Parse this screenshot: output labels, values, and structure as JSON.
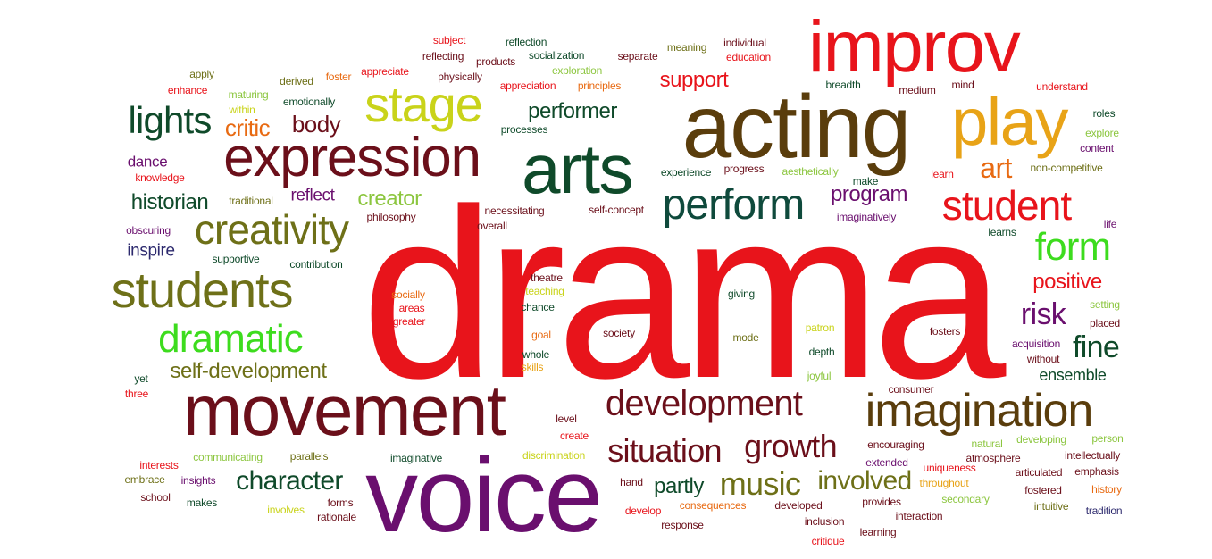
{
  "palette": {
    "red": "#e8141b",
    "dark_red": "#6b0f1a",
    "dark_green": "#0f4a2a",
    "olive": "#6e7018",
    "brown": "#5a3d0c",
    "lime": "#8cc63f",
    "yellow_green": "#c9d31a",
    "green": "#3ddc1e",
    "orange": "#e86a12",
    "amber": "#e8a317",
    "purple": "#6a0f6e",
    "navy": "#2d2a6e",
    "teal": "#0f4a3c"
  },
  "words": [
    {
      "text": "drama",
      "color": "red"
    },
    {
      "text": "voice",
      "color": "purple"
    },
    {
      "text": "movement",
      "color": "dark_red"
    },
    {
      "text": "acting",
      "color": "brown"
    },
    {
      "text": "improv",
      "color": "red"
    },
    {
      "text": "arts",
      "color": "dark_green"
    },
    {
      "text": "expression",
      "color": "dark_red"
    },
    {
      "text": "play",
      "color": "amber"
    },
    {
      "text": "imagination",
      "color": "brown"
    },
    {
      "text": "students",
      "color": "olive"
    },
    {
      "text": "stage",
      "color": "yellow_green"
    },
    {
      "text": "creativity",
      "color": "olive"
    },
    {
      "text": "student",
      "color": "red"
    },
    {
      "text": "dramatic",
      "color": "green"
    },
    {
      "text": "perform",
      "color": "teal"
    },
    {
      "text": "development",
      "color": "dark_red"
    },
    {
      "text": "lights",
      "color": "dark_green"
    },
    {
      "text": "form",
      "color": "green"
    },
    {
      "text": "growth",
      "color": "dark_red"
    },
    {
      "text": "situation",
      "color": "dark_red"
    },
    {
      "text": "music",
      "color": "olive"
    },
    {
      "text": "character",
      "color": "dark_green"
    },
    {
      "text": "self-development",
      "color": "olive"
    },
    {
      "text": "art",
      "color": "orange"
    },
    {
      "text": "involved",
      "color": "olive"
    },
    {
      "text": "fine",
      "color": "dark_green"
    },
    {
      "text": "risk",
      "color": "purple"
    },
    {
      "text": "historian",
      "color": "dark_green"
    },
    {
      "text": "critic",
      "color": "orange"
    },
    {
      "text": "body",
      "color": "dark_red"
    },
    {
      "text": "performer",
      "color": "dark_green"
    },
    {
      "text": "program",
      "color": "purple"
    },
    {
      "text": "creator",
      "color": "lime"
    },
    {
      "text": "positive",
      "color": "red"
    },
    {
      "text": "support",
      "color": "red"
    },
    {
      "text": "partly",
      "color": "dark_green"
    },
    {
      "text": "ensemble",
      "color": "dark_green"
    },
    {
      "text": "reflect",
      "color": "purple"
    },
    {
      "text": "inspire",
      "color": "navy"
    },
    {
      "text": "dance",
      "color": "purple"
    },
    {
      "text": "subject",
      "color": "red"
    },
    {
      "text": "reflection",
      "color": "dark_green"
    },
    {
      "text": "reflecting",
      "color": "dark_red"
    },
    {
      "text": "products",
      "color": "dark_red"
    },
    {
      "text": "socialization",
      "color": "dark_green"
    },
    {
      "text": "separate",
      "color": "dark_red"
    },
    {
      "text": "meaning",
      "color": "olive"
    },
    {
      "text": "individual",
      "color": "dark_red"
    },
    {
      "text": "education",
      "color": "red"
    },
    {
      "text": "apply",
      "color": "olive"
    },
    {
      "text": "derived",
      "color": "olive"
    },
    {
      "text": "foster",
      "color": "orange"
    },
    {
      "text": "appreciate",
      "color": "red"
    },
    {
      "text": "physically",
      "color": "dark_red"
    },
    {
      "text": "exploration",
      "color": "lime"
    },
    {
      "text": "enhance",
      "color": "red"
    },
    {
      "text": "maturing",
      "color": "lime"
    },
    {
      "text": "emotionally",
      "color": "dark_green"
    },
    {
      "text": "appreciation",
      "color": "red"
    },
    {
      "text": "principles",
      "color": "orange"
    },
    {
      "text": "breadth",
      "color": "dark_green"
    },
    {
      "text": "medium",
      "color": "dark_red"
    },
    {
      "text": "mind",
      "color": "dark_red"
    },
    {
      "text": "understand",
      "color": "red"
    },
    {
      "text": "within",
      "color": "yellow_green"
    },
    {
      "text": "roles",
      "color": "dark_green"
    },
    {
      "text": "explore",
      "color": "lime"
    },
    {
      "text": "content",
      "color": "purple"
    },
    {
      "text": "processes",
      "color": "dark_green"
    },
    {
      "text": "knowledge",
      "color": "red"
    },
    {
      "text": "experience",
      "color": "dark_green"
    },
    {
      "text": "progress",
      "color": "dark_red"
    },
    {
      "text": "aesthetically",
      "color": "lime"
    },
    {
      "text": "non-competitive",
      "color": "olive"
    },
    {
      "text": "traditional",
      "color": "olive"
    },
    {
      "text": "make",
      "color": "dark_green"
    },
    {
      "text": "learn",
      "color": "red"
    },
    {
      "text": "philosophy",
      "color": "dark_red"
    },
    {
      "text": "necessitating",
      "color": "dark_red"
    },
    {
      "text": "self-concept",
      "color": "dark_red"
    },
    {
      "text": "imaginatively",
      "color": "purple"
    },
    {
      "text": "overall",
      "color": "dark_red"
    },
    {
      "text": "obscuring",
      "color": "purple"
    },
    {
      "text": "life",
      "color": "purple"
    },
    {
      "text": "learns",
      "color": "dark_green"
    },
    {
      "text": "supportive",
      "color": "dark_green"
    },
    {
      "text": "contribution",
      "color": "dark_green"
    },
    {
      "text": "theatre",
      "color": "dark_red"
    },
    {
      "text": "teaching",
      "color": "yellow_green"
    },
    {
      "text": "socially",
      "color": "orange"
    },
    {
      "text": "areas",
      "color": "red"
    },
    {
      "text": "greater",
      "color": "red"
    },
    {
      "text": "chance",
      "color": "dark_green"
    },
    {
      "text": "giving",
      "color": "dark_green"
    },
    {
      "text": "setting",
      "color": "lime"
    },
    {
      "text": "placed",
      "color": "dark_red"
    },
    {
      "text": "society",
      "color": "dark_red"
    },
    {
      "text": "patron",
      "color": "yellow_green"
    },
    {
      "text": "fosters",
      "color": "dark_red"
    },
    {
      "text": "goal",
      "color": "orange"
    },
    {
      "text": "mode",
      "color": "olive"
    },
    {
      "text": "acquisition",
      "color": "purple"
    },
    {
      "text": "whole",
      "color": "dark_green"
    },
    {
      "text": "depth",
      "color": "dark_green"
    },
    {
      "text": "without",
      "color": "dark_red"
    },
    {
      "text": "skills",
      "color": "amber"
    },
    {
      "text": "joyful",
      "color": "lime"
    },
    {
      "text": "yet",
      "color": "dark_green"
    },
    {
      "text": "three",
      "color": "red"
    },
    {
      "text": "consumer",
      "color": "dark_red"
    },
    {
      "text": "level",
      "color": "dark_red"
    },
    {
      "text": "create",
      "color": "red"
    },
    {
      "text": "encouraging",
      "color": "dark_red"
    },
    {
      "text": "natural",
      "color": "lime"
    },
    {
      "text": "developing",
      "color": "lime"
    },
    {
      "text": "person",
      "color": "lime"
    },
    {
      "text": "communicating",
      "color": "lime"
    },
    {
      "text": "parallels",
      "color": "olive"
    },
    {
      "text": "imaginative",
      "color": "dark_green"
    },
    {
      "text": "discrimination",
      "color": "yellow_green"
    },
    {
      "text": "extended",
      "color": "purple"
    },
    {
      "text": "atmosphere",
      "color": "dark_red"
    },
    {
      "text": "intellectually",
      "color": "dark_red"
    },
    {
      "text": "interests",
      "color": "red"
    },
    {
      "text": "uniqueness",
      "color": "red"
    },
    {
      "text": "embrace",
      "color": "olive"
    },
    {
      "text": "insights",
      "color": "purple"
    },
    {
      "text": "articulated",
      "color": "dark_red"
    },
    {
      "text": "emphasis",
      "color": "dark_red"
    },
    {
      "text": "throughout",
      "color": "amber"
    },
    {
      "text": "hand",
      "color": "dark_red"
    },
    {
      "text": "forms",
      "color": "dark_red"
    },
    {
      "text": "secondary",
      "color": "lime"
    },
    {
      "text": "school",
      "color": "dark_red"
    },
    {
      "text": "makes",
      "color": "dark_green"
    },
    {
      "text": "developed",
      "color": "dark_red"
    },
    {
      "text": "fostered",
      "color": "dark_red"
    },
    {
      "text": "history",
      "color": "orange"
    },
    {
      "text": "involves",
      "color": "yellow_green"
    },
    {
      "text": "rationale",
      "color": "dark_red"
    },
    {
      "text": "develop",
      "color": "red"
    },
    {
      "text": "consequences",
      "color": "orange"
    },
    {
      "text": "provides",
      "color": "dark_red"
    },
    {
      "text": "intuitive",
      "color": "olive"
    },
    {
      "text": "tradition",
      "color": "navy"
    },
    {
      "text": "interaction",
      "color": "dark_red"
    },
    {
      "text": "inclusion",
      "color": "dark_red"
    },
    {
      "text": "response",
      "color": "dark_red"
    },
    {
      "text": "learning",
      "color": "dark_red"
    },
    {
      "text": "critique",
      "color": "red"
    }
  ]
}
